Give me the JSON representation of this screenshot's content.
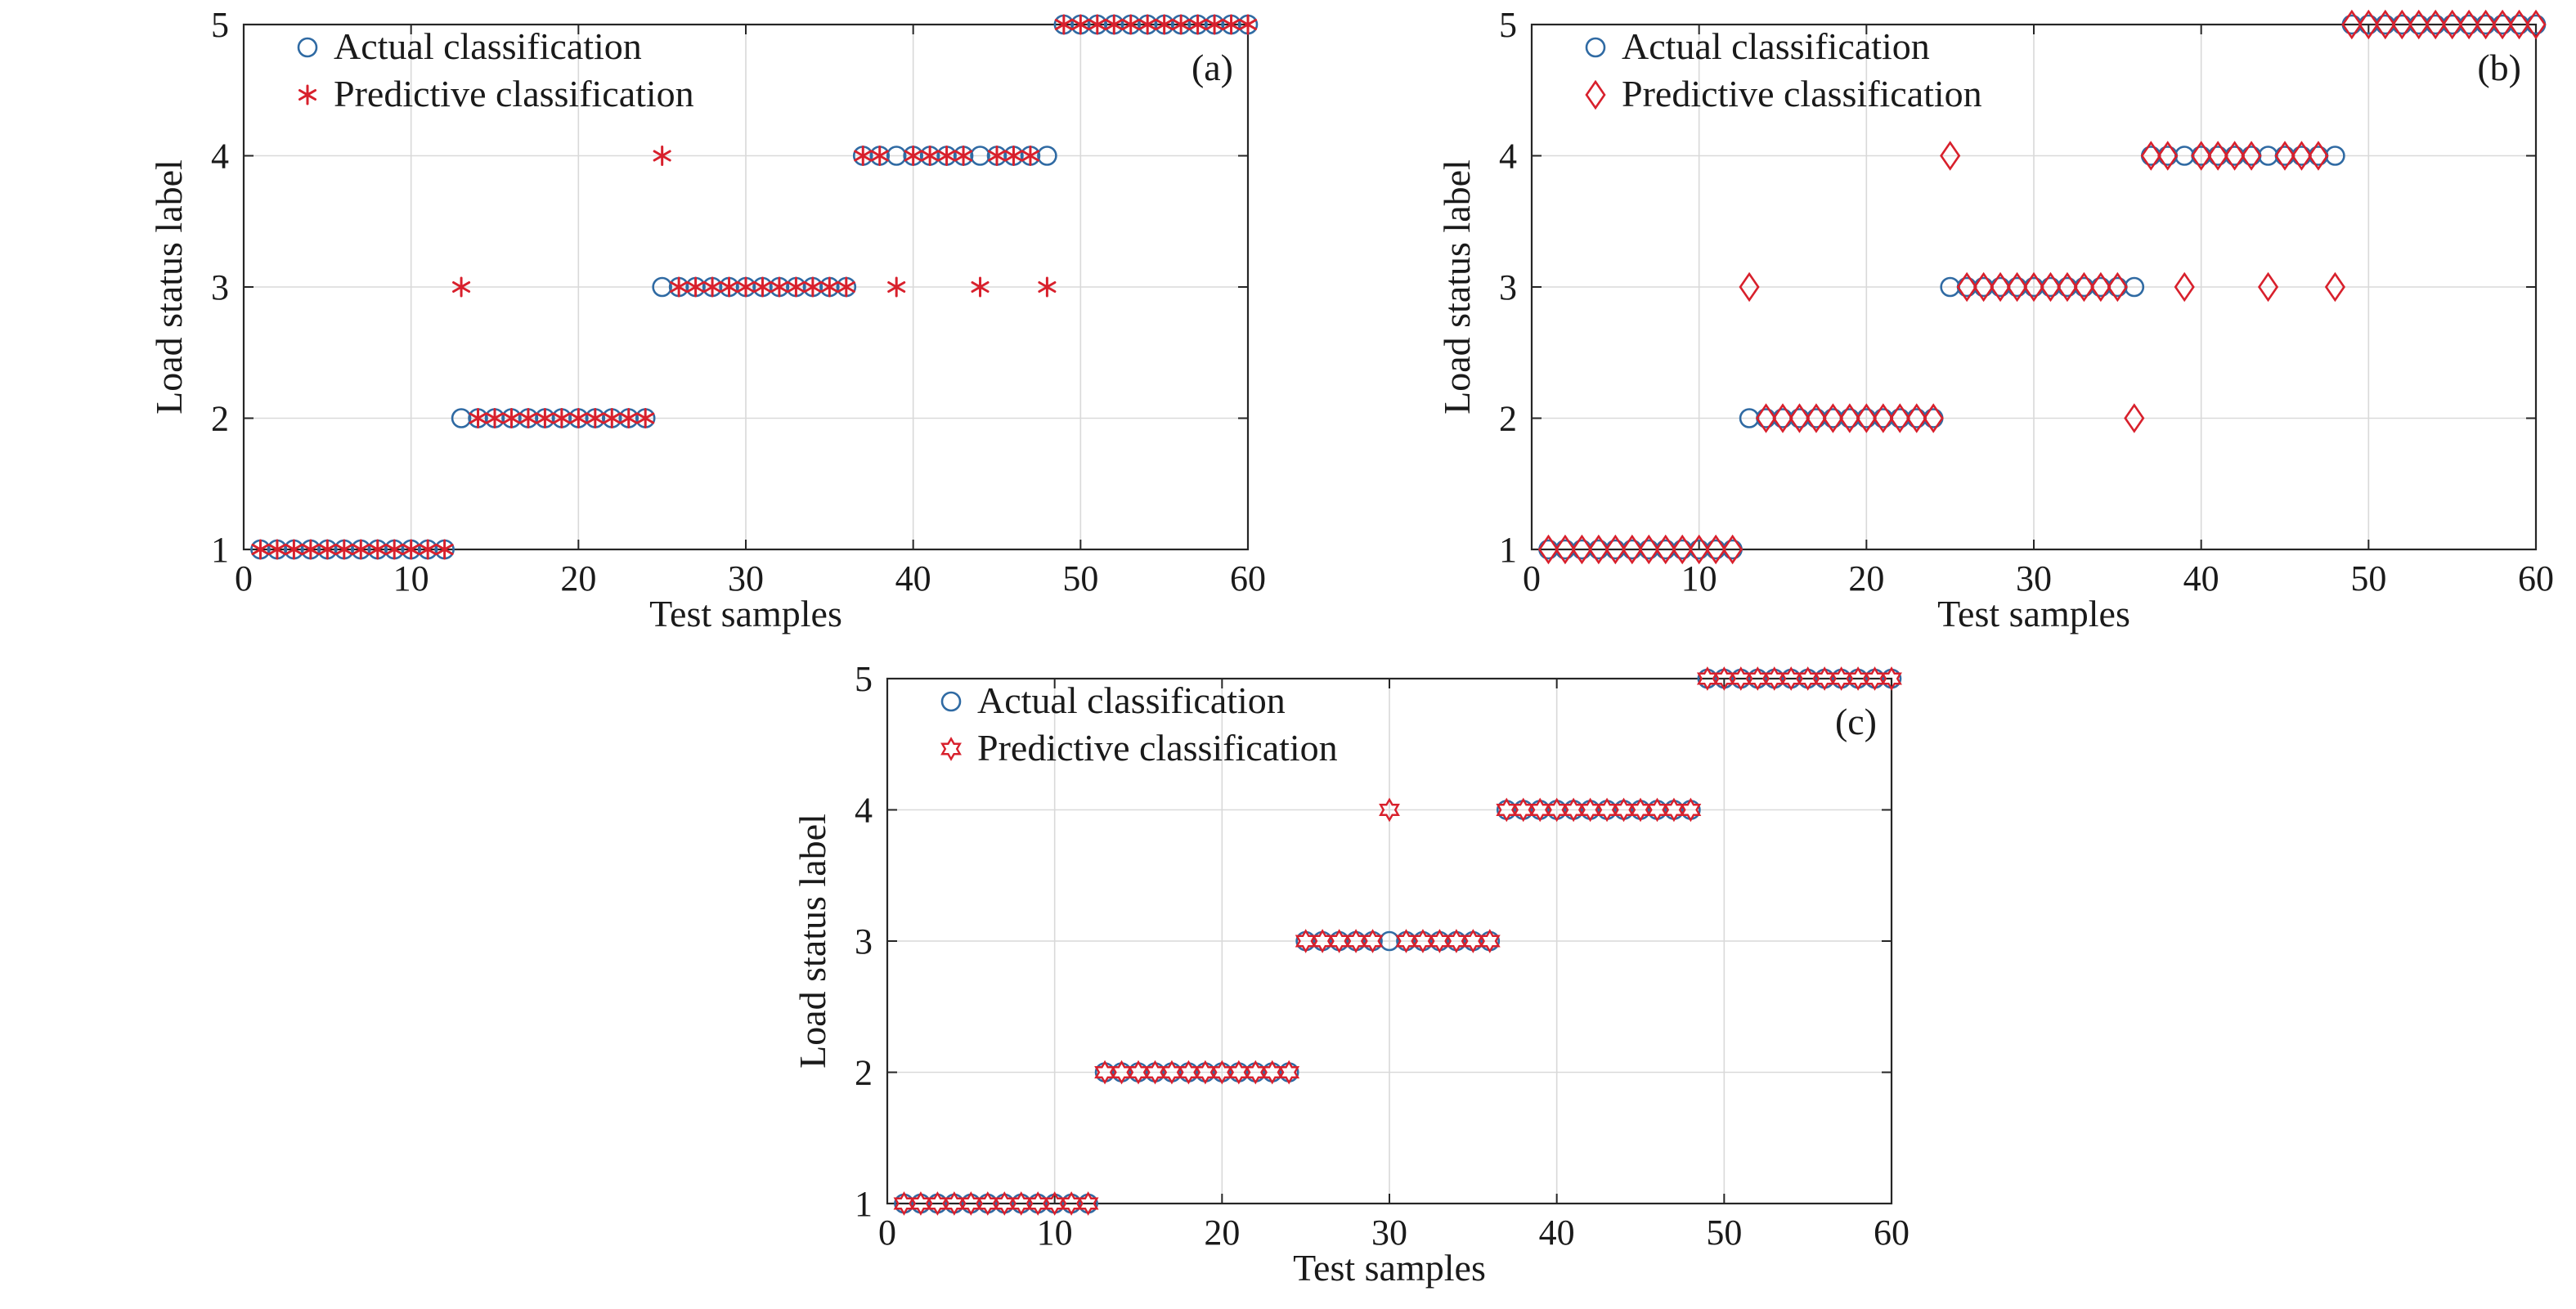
{
  "colors": {
    "actual": "#2f6aa3",
    "predicted": "#d8202c",
    "grid": "#d9d9d9",
    "axis": "#262626"
  },
  "chart_data": [
    {
      "type": "scatter",
      "tag": "(a)",
      "xlabel": "Test samples",
      "ylabel": "Load status label",
      "xlim": [
        0,
        60
      ],
      "ylim": [
        1,
        5
      ],
      "xticks": [
        0,
        10,
        20,
        30,
        40,
        50,
        60
      ],
      "yticks": [
        1,
        2,
        3,
        4,
        5
      ],
      "grid": true,
      "legend_position": "top-left",
      "series": [
        {
          "name": "Actual classification",
          "marker": "circle",
          "x": [
            1,
            2,
            3,
            4,
            5,
            6,
            7,
            8,
            9,
            10,
            11,
            12,
            13,
            14,
            15,
            16,
            17,
            18,
            19,
            20,
            21,
            22,
            23,
            24,
            25,
            26,
            27,
            28,
            29,
            30,
            31,
            32,
            33,
            34,
            35,
            36,
            37,
            38,
            39,
            40,
            41,
            42,
            43,
            44,
            45,
            46,
            47,
            48,
            49,
            50,
            51,
            52,
            53,
            54,
            55,
            56,
            57,
            58,
            59,
            60
          ],
          "y": [
            1,
            1,
            1,
            1,
            1,
            1,
            1,
            1,
            1,
            1,
            1,
            1,
            2,
            2,
            2,
            2,
            2,
            2,
            2,
            2,
            2,
            2,
            2,
            2,
            3,
            3,
            3,
            3,
            3,
            3,
            3,
            3,
            3,
            3,
            3,
            3,
            4,
            4,
            4,
            4,
            4,
            4,
            4,
            4,
            4,
            4,
            4,
            4,
            5,
            5,
            5,
            5,
            5,
            5,
            5,
            5,
            5,
            5,
            5,
            5
          ]
        },
        {
          "name": "Predictive classification",
          "marker": "asterisk",
          "x": [
            1,
            2,
            3,
            4,
            5,
            6,
            7,
            8,
            9,
            10,
            11,
            12,
            13,
            14,
            15,
            16,
            17,
            18,
            19,
            20,
            21,
            22,
            23,
            24,
            25,
            26,
            27,
            28,
            29,
            30,
            31,
            32,
            33,
            34,
            35,
            36,
            37,
            38,
            39,
            40,
            41,
            42,
            43,
            44,
            45,
            46,
            47,
            48,
            49,
            50,
            51,
            52,
            53,
            54,
            55,
            56,
            57,
            58,
            59,
            60
          ],
          "y": [
            1,
            1,
            1,
            1,
            1,
            1,
            1,
            1,
            1,
            1,
            1,
            1,
            3,
            2,
            2,
            2,
            2,
            2,
            2,
            2,
            2,
            2,
            2,
            2,
            4,
            3,
            3,
            3,
            3,
            3,
            3,
            3,
            3,
            3,
            3,
            3,
            4,
            4,
            3,
            4,
            4,
            4,
            4,
            3,
            4,
            4,
            4,
            3,
            5,
            5,
            5,
            5,
            5,
            5,
            5,
            5,
            5,
            5,
            5,
            5
          ]
        }
      ]
    },
    {
      "type": "scatter",
      "tag": "(b)",
      "xlabel": "Test samples",
      "ylabel": "Load status label",
      "xlim": [
        0,
        60
      ],
      "ylim": [
        1,
        5
      ],
      "xticks": [
        0,
        10,
        20,
        30,
        40,
        50,
        60
      ],
      "yticks": [
        1,
        2,
        3,
        4,
        5
      ],
      "grid": true,
      "legend_position": "top-left",
      "series": [
        {
          "name": "Actual classification",
          "marker": "circle",
          "x": [
            1,
            2,
            3,
            4,
            5,
            6,
            7,
            8,
            9,
            10,
            11,
            12,
            13,
            14,
            15,
            16,
            17,
            18,
            19,
            20,
            21,
            22,
            23,
            24,
            25,
            26,
            27,
            28,
            29,
            30,
            31,
            32,
            33,
            34,
            35,
            36,
            37,
            38,
            39,
            40,
            41,
            42,
            43,
            44,
            45,
            46,
            47,
            48,
            49,
            50,
            51,
            52,
            53,
            54,
            55,
            56,
            57,
            58,
            59,
            60
          ],
          "y": [
            1,
            1,
            1,
            1,
            1,
            1,
            1,
            1,
            1,
            1,
            1,
            1,
            2,
            2,
            2,
            2,
            2,
            2,
            2,
            2,
            2,
            2,
            2,
            2,
            3,
            3,
            3,
            3,
            3,
            3,
            3,
            3,
            3,
            3,
            3,
            3,
            4,
            4,
            4,
            4,
            4,
            4,
            4,
            4,
            4,
            4,
            4,
            4,
            5,
            5,
            5,
            5,
            5,
            5,
            5,
            5,
            5,
            5,
            5,
            5
          ]
        },
        {
          "name": "Predictive classification",
          "marker": "diamond",
          "x": [
            1,
            2,
            3,
            4,
            5,
            6,
            7,
            8,
            9,
            10,
            11,
            12,
            13,
            14,
            15,
            16,
            17,
            18,
            19,
            20,
            21,
            22,
            23,
            24,
            25,
            26,
            27,
            28,
            29,
            30,
            31,
            32,
            33,
            34,
            35,
            36,
            37,
            38,
            39,
            40,
            41,
            42,
            43,
            44,
            45,
            46,
            47,
            48,
            49,
            50,
            51,
            52,
            53,
            54,
            55,
            56,
            57,
            58,
            59,
            60
          ],
          "y": [
            1,
            1,
            1,
            1,
            1,
            1,
            1,
            1,
            1,
            1,
            1,
            1,
            3,
            2,
            2,
            2,
            2,
            2,
            2,
            2,
            2,
            2,
            2,
            2,
            4,
            3,
            3,
            3,
            3,
            3,
            3,
            3,
            3,
            3,
            3,
            2,
            4,
            4,
            3,
            4,
            4,
            4,
            4,
            3,
            4,
            4,
            4,
            3,
            5,
            5,
            5,
            5,
            5,
            5,
            5,
            5,
            5,
            5,
            5,
            5
          ]
        }
      ]
    },
    {
      "type": "scatter",
      "tag": "(c)",
      "xlabel": "Test samples",
      "ylabel": "Load status label",
      "xlim": [
        0,
        60
      ],
      "ylim": [
        1,
        5
      ],
      "xticks": [
        0,
        10,
        20,
        30,
        40,
        50,
        60
      ],
      "yticks": [
        1,
        2,
        3,
        4,
        5
      ],
      "grid": true,
      "legend_position": "top-left",
      "series": [
        {
          "name": "Actual classification",
          "marker": "circle",
          "x": [
            1,
            2,
            3,
            4,
            5,
            6,
            7,
            8,
            9,
            10,
            11,
            12,
            13,
            14,
            15,
            16,
            17,
            18,
            19,
            20,
            21,
            22,
            23,
            24,
            25,
            26,
            27,
            28,
            29,
            30,
            31,
            32,
            33,
            34,
            35,
            36,
            37,
            38,
            39,
            40,
            41,
            42,
            43,
            44,
            45,
            46,
            47,
            48,
            49,
            50,
            51,
            52,
            53,
            54,
            55,
            56,
            57,
            58,
            59,
            60
          ],
          "y": [
            1,
            1,
            1,
            1,
            1,
            1,
            1,
            1,
            1,
            1,
            1,
            1,
            2,
            2,
            2,
            2,
            2,
            2,
            2,
            2,
            2,
            2,
            2,
            2,
            3,
            3,
            3,
            3,
            3,
            3,
            3,
            3,
            3,
            3,
            3,
            3,
            4,
            4,
            4,
            4,
            4,
            4,
            4,
            4,
            4,
            4,
            4,
            4,
            5,
            5,
            5,
            5,
            5,
            5,
            5,
            5,
            5,
            5,
            5,
            5
          ]
        },
        {
          "name": "Predictive classification",
          "marker": "hexagram",
          "x": [
            1,
            2,
            3,
            4,
            5,
            6,
            7,
            8,
            9,
            10,
            11,
            12,
            13,
            14,
            15,
            16,
            17,
            18,
            19,
            20,
            21,
            22,
            23,
            24,
            25,
            26,
            27,
            28,
            29,
            30,
            31,
            32,
            33,
            34,
            35,
            36,
            37,
            38,
            39,
            40,
            41,
            42,
            43,
            44,
            45,
            46,
            47,
            48,
            49,
            50,
            51,
            52,
            53,
            54,
            55,
            56,
            57,
            58,
            59,
            60
          ],
          "y": [
            1,
            1,
            1,
            1,
            1,
            1,
            1,
            1,
            1,
            1,
            1,
            1,
            2,
            2,
            2,
            2,
            2,
            2,
            2,
            2,
            2,
            2,
            2,
            2,
            3,
            3,
            3,
            3,
            3,
            4,
            3,
            3,
            3,
            3,
            3,
            3,
            4,
            4,
            4,
            4,
            4,
            4,
            4,
            4,
            4,
            4,
            4,
            4,
            5,
            5,
            5,
            5,
            5,
            5,
            5,
            5,
            5,
            5,
            5,
            5
          ]
        }
      ]
    }
  ]
}
